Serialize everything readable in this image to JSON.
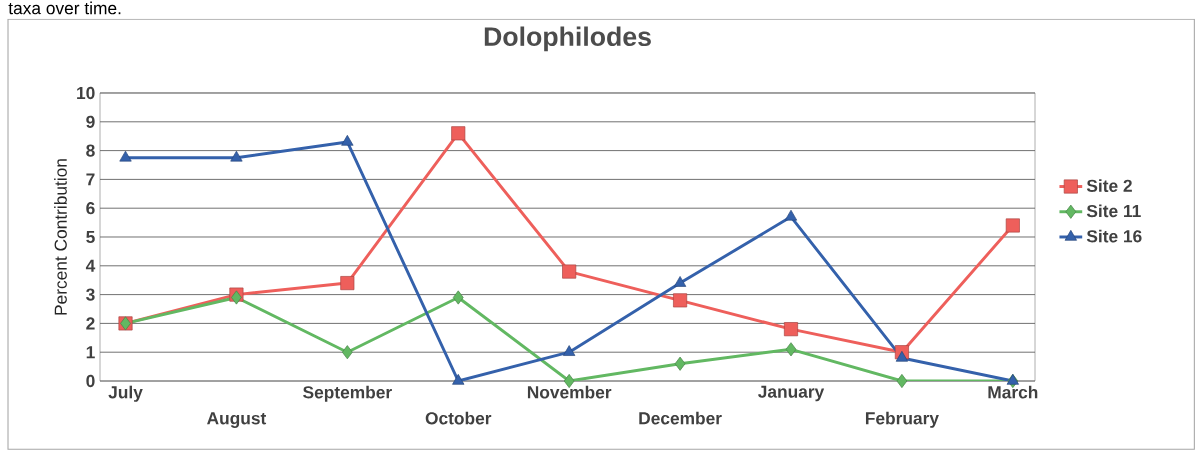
{
  "chart_data": {
    "type": "line",
    "title": "Dolophilodes",
    "ylabel": "Percent Contribution",
    "annotations": [
      "taxa over time."
    ],
    "categories": [
      "July",
      "August",
      "September",
      "October",
      "November",
      "December",
      "January",
      "February",
      "March"
    ],
    "series": [
      {
        "name": "Site 2",
        "color": "#ee5f5b",
        "marker": "square",
        "values": [
          2,
          3,
          3.4,
          8.6,
          3.8,
          2.8,
          1.8,
          1.0,
          5.4
        ]
      },
      {
        "name": "Site 11",
        "color": "#62b862",
        "marker": "diamond",
        "values": [
          2,
          2.9,
          1.0,
          2.9,
          0,
          0.6,
          1.1,
          0,
          0
        ]
      },
      {
        "name": "Site 16",
        "color": "#3461ab",
        "marker": "triangle",
        "values": [
          7.75,
          7.75,
          8.3,
          0,
          1.0,
          3.4,
          5.7,
          0.8,
          0
        ]
      }
    ],
    "ylim": [
      0,
      10
    ],
    "yticks": [
      0,
      1,
      2,
      3,
      4,
      5,
      6,
      7,
      8,
      9,
      10
    ],
    "grid": "y",
    "legend": "right",
    "line_style": "solid"
  }
}
